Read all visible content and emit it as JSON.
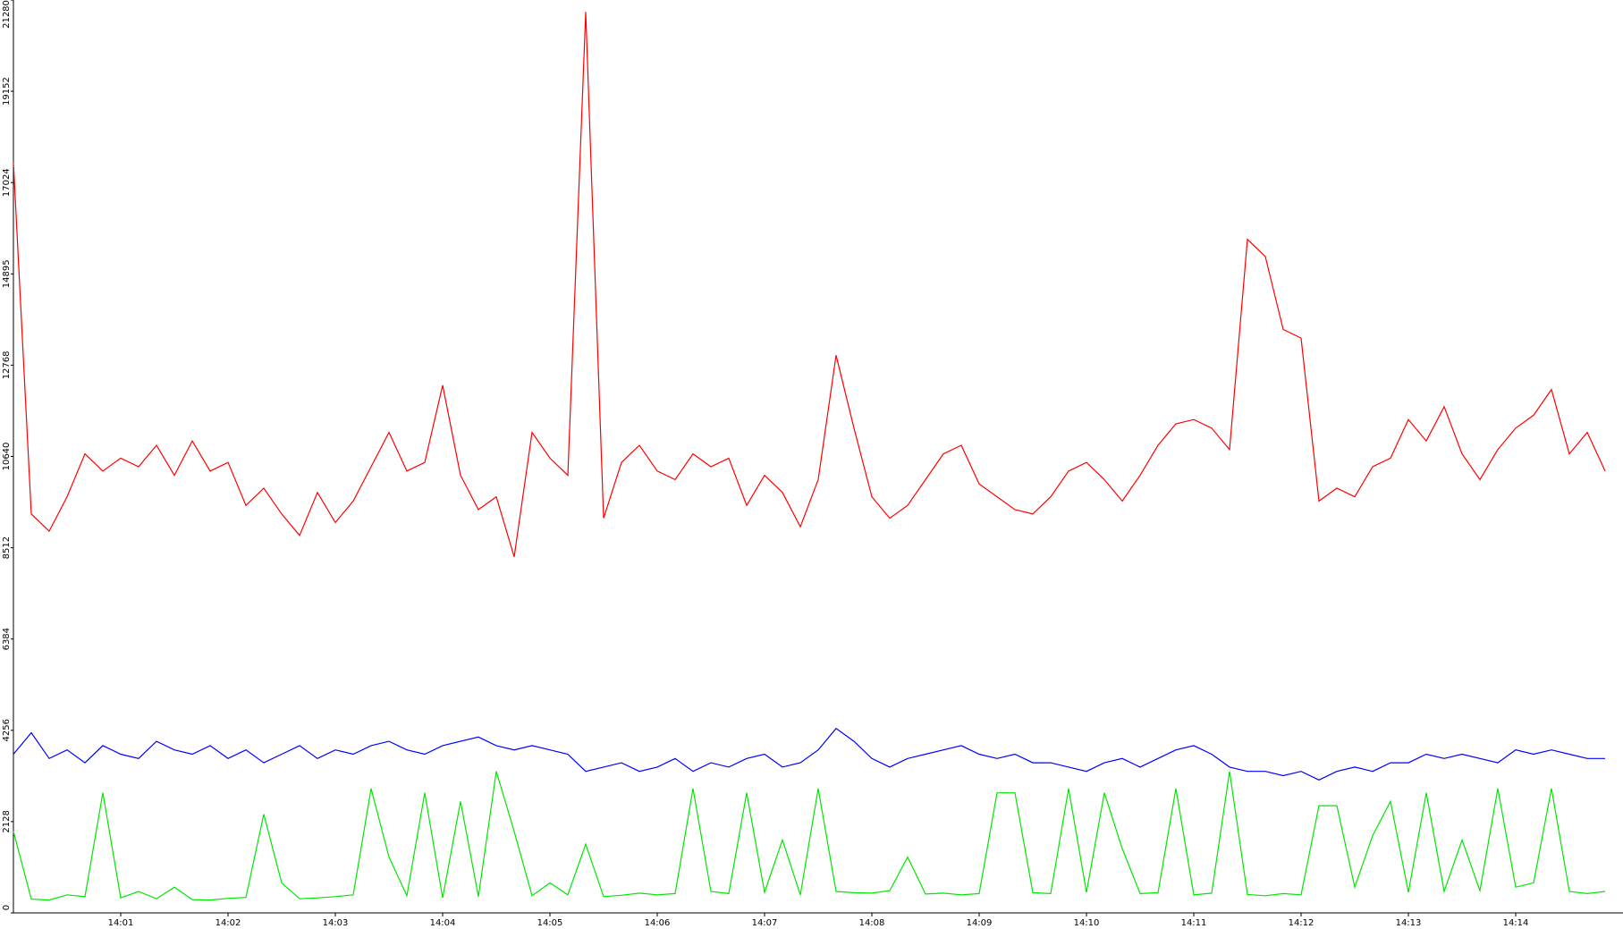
{
  "chart_data": {
    "type": "line",
    "categories": [
      null,
      null,
      null,
      null,
      null,
      null,
      "14:01",
      null,
      null,
      null,
      null,
      null,
      "14:02",
      null,
      null,
      null,
      null,
      null,
      "14:03",
      null,
      null,
      null,
      null,
      null,
      "14:04",
      null,
      null,
      null,
      null,
      null,
      "14:05",
      null,
      null,
      null,
      null,
      null,
      "14:06",
      null,
      null,
      null,
      null,
      null,
      "14:07",
      null,
      null,
      null,
      null,
      null,
      "14:08",
      null,
      null,
      null,
      null,
      null,
      "14:09",
      null,
      null,
      null,
      null,
      null,
      "14:10",
      null,
      null,
      null,
      null,
      null,
      "14:11",
      null,
      null,
      null,
      null,
      null,
      "14:12",
      null,
      null,
      null,
      null,
      null,
      "14:13",
      null,
      null,
      null,
      null,
      null,
      "14:14",
      null,
      null,
      null,
      null,
      null
    ],
    "ylim": [
      0,
      21280
    ],
    "yticks": [
      0,
      2128,
      4256,
      6384,
      8512,
      10640,
      12768,
      14895,
      17024,
      19152,
      21280
    ],
    "grid": false,
    "series": [
      {
        "color": "#ff0000",
        "values": [
          17500,
          9300,
          8900,
          9700,
          10700,
          10300,
          10600,
          10400,
          10900,
          10200,
          11000,
          10300,
          10500,
          9500,
          9900,
          9300,
          8800,
          9800,
          9100,
          9600,
          10400,
          11200,
          10300,
          10500,
          12300,
          10200,
          9400,
          9700,
          8300,
          11200,
          10600,
          10200,
          21000,
          9200,
          10500,
          10900,
          10300,
          10100,
          10700,
          10400,
          10600,
          9500,
          10200,
          9800,
          9000,
          10100,
          13000,
          11300,
          9700,
          9200,
          9500,
          10100,
          10700,
          10900,
          10000,
          9700,
          9400,
          9300,
          9700,
          10300,
          10500,
          10100,
          9600,
          10200,
          10900,
          11400,
          11500,
          11300,
          10800,
          15700,
          15300,
          13600,
          13400,
          9600,
          9900,
          9700,
          10400,
          10600,
          11500,
          11000,
          11800,
          10700,
          10100,
          10800,
          11300,
          11600,
          12200,
          10700,
          11200,
          10300
        ]
      },
      {
        "color": "#0000ff",
        "values": [
          3700,
          4200,
          3600,
          3800,
          3500,
          3900,
          3700,
          3600,
          4000,
          3800,
          3700,
          3900,
          3600,
          3800,
          3500,
          3700,
          3900,
          3600,
          3800,
          3700,
          3900,
          4000,
          3800,
          3700,
          3900,
          4000,
          4100,
          3900,
          3800,
          3900,
          3800,
          3700,
          3300,
          3400,
          3500,
          3300,
          3400,
          3600,
          3300,
          3500,
          3400,
          3600,
          3700,
          3400,
          3500,
          3800,
          4300,
          4000,
          3600,
          3400,
          3600,
          3700,
          3800,
          3900,
          3700,
          3600,
          3700,
          3500,
          3500,
          3400,
          3300,
          3500,
          3600,
          3400,
          3600,
          3800,
          3900,
          3700,
          3400,
          3300,
          3300,
          3200,
          3300,
          3100,
          3300,
          3400,
          3300,
          3500,
          3500,
          3700,
          3600,
          3700,
          3600,
          3500,
          3800,
          3700,
          3800,
          3700,
          3600,
          3600
        ]
      },
      {
        "color": "#00e600",
        "values": [
          1900,
          320,
          300,
          420,
          380,
          2800,
          350,
          500,
          330,
          600,
          310,
          300,
          340,
          360,
          2300,
          700,
          330,
          350,
          380,
          420,
          2900,
          1300,
          400,
          2800,
          350,
          2600,
          380,
          3300,
          1900,
          400,
          700,
          420,
          1600,
          380,
          410,
          460,
          420,
          450,
          2900,
          500,
          450,
          2800,
          480,
          1700,
          420,
          2900,
          500,
          470,
          460,
          520,
          1300,
          440,
          460,
          420,
          450,
          2800,
          2800,
          470,
          450,
          2900,
          480,
          2800,
          1500,
          450,
          470,
          2900,
          420,
          460,
          3300,
          430,
          400,
          450,
          420,
          2500,
          2500,
          600,
          1800,
          2600,
          480,
          2800,
          500,
          1700,
          520,
          2900,
          600,
          700,
          2900,
          500,
          450,
          500
        ]
      }
    ]
  }
}
